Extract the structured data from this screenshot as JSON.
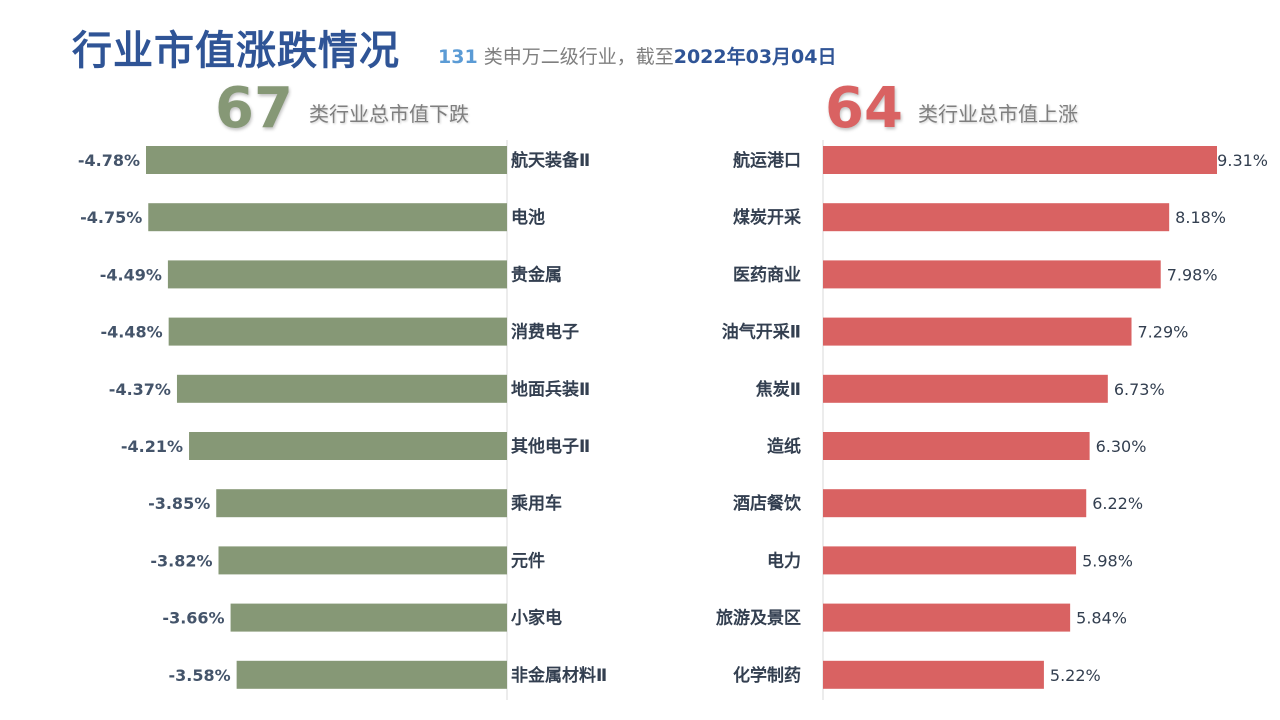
{
  "title": "行业市值涨跌情况",
  "subtitle": {
    "count": "131",
    "text": "类申万二级行业，截至",
    "date": "2022年03月04日"
  },
  "down_summary": {
    "count": "67",
    "label": "类行业总市值下跌"
  },
  "up_summary": {
    "count": "64",
    "label": "类行业总市值上涨"
  },
  "colors": {
    "down": "#869876",
    "up": "#D96262",
    "title": "#2F5496"
  },
  "chart_data": [
    {
      "type": "bar",
      "orientation": "horizontal",
      "categories": [
        "航天装备Ⅱ",
        "电池",
        "贵金属",
        "消费电子",
        "地面兵装Ⅱ",
        "其他电子Ⅱ",
        "乘用车",
        "元件",
        "小家电",
        "非金属材料Ⅱ"
      ],
      "values": [
        -4.78,
        -4.75,
        -4.49,
        -4.48,
        -4.37,
        -4.21,
        -3.85,
        -3.82,
        -3.66,
        -3.58
      ],
      "value_labels": [
        "-4.78%",
        "-4.75%",
        "-4.49%",
        "-4.48%",
        "-4.37%",
        "-4.21%",
        "-3.85%",
        "-3.82%",
        "-3.66%",
        "-3.58%"
      ],
      "xlim": [
        -4.78,
        0
      ]
    },
    {
      "type": "bar",
      "orientation": "horizontal",
      "categories": [
        "航运港口",
        "煤炭开采",
        "医药商业",
        "油气开采Ⅱ",
        "焦炭Ⅱ",
        "造纸",
        "酒店餐饮",
        "电力",
        "旅游及景区",
        "化学制药"
      ],
      "values": [
        9.31,
        8.18,
        7.98,
        7.29,
        6.73,
        6.3,
        6.22,
        5.98,
        5.84,
        5.22
      ],
      "value_labels": [
        "9.31%",
        "8.18%",
        "7.98%",
        "7.29%",
        "6.73%",
        "6.30%",
        "6.22%",
        "5.98%",
        "5.84%",
        "5.22%"
      ],
      "xlim": [
        0,
        9.31
      ]
    }
  ]
}
